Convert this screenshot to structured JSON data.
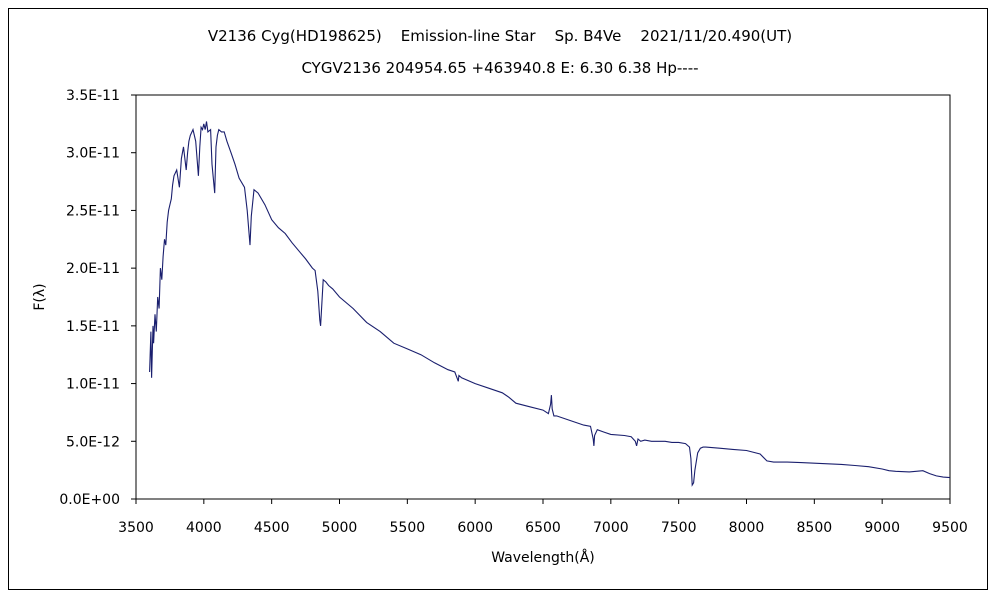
{
  "chart_data": {
    "type": "line",
    "title": "V2136 Cyg(HD198625)    Emission-line Star    Sp. B4Ve    2021/11/20.490(UT)",
    "subtitle": "CYGV2136 204954.65 +463940.8 E: 6.30 6.38 Hp----",
    "xlabel": "Wavelength(Å)",
    "ylabel": "F(λ)",
    "xlim": [
      3500,
      9500
    ],
    "ylim": [
      0,
      3.5e-11
    ],
    "x_ticks": [
      3500,
      4000,
      4500,
      5000,
      5500,
      6000,
      6500,
      7000,
      7500,
      8000,
      8500,
      9000,
      9500
    ],
    "y_ticks": [
      {
        "value": 0,
        "label": "0.0E+00"
      },
      {
        "value": 5e-12,
        "label": "5.0E-12"
      },
      {
        "value": 1e-11,
        "label": "1.0E-11"
      },
      {
        "value": 1.5e-11,
        "label": "1.5E-11"
      },
      {
        "value": 2e-11,
        "label": "2.0E-11"
      },
      {
        "value": 2.5e-11,
        "label": "2.5E-11"
      },
      {
        "value": 3e-11,
        "label": "3.0E-11"
      },
      {
        "value": 3.5e-11,
        "label": "3.5E-11"
      }
    ],
    "grid": false,
    "legend": "none",
    "line_color": "#1a1f6e",
    "series": [
      {
        "x": [
          3600,
          3610,
          3615,
          3625,
          3630,
          3640,
          3650,
          3660,
          3670,
          3680,
          3690,
          3700,
          3710,
          3720,
          3730,
          3740,
          3750,
          3760,
          3770,
          3780,
          3800,
          3820,
          3835,
          3850,
          3870,
          3880,
          3890,
          3900,
          3920,
          3940,
          3960,
          3970,
          3980,
          3990,
          4000,
          4010,
          4020,
          4030,
          4050,
          4060,
          4080,
          4090,
          4100,
          4110,
          4130,
          4150,
          4170,
          4200,
          4230,
          4260,
          4300,
          4320,
          4340,
          4350,
          4370,
          4400,
          4450,
          4500,
          4550,
          4600,
          4650,
          4700,
          4750,
          4800,
          4820,
          4840,
          4855,
          4861,
          4870,
          4880,
          4900,
          4920,
          4950,
          5000,
          5100,
          5200,
          5300,
          5400,
          5500,
          5600,
          5700,
          5800,
          5850,
          5876,
          5880,
          5900,
          6000,
          6100,
          6200,
          6250,
          6300,
          6400,
          6500,
          6540,
          6556,
          6562,
          6568,
          6580,
          6600,
          6700,
          6800,
          6850,
          6870,
          6875,
          6880,
          6900,
          6950,
          7000,
          7100,
          7150,
          7180,
          7190,
          7200,
          7220,
          7250,
          7300,
          7350,
          7400,
          7450,
          7500,
          7550,
          7580,
          7590,
          7600,
          7610,
          7620,
          7640,
          7660,
          7680,
          7700,
          7800,
          7900,
          8000,
          8100,
          8150,
          8200,
          8300,
          8400,
          8500,
          8600,
          8700,
          8800,
          8900,
          9000,
          9050,
          9100,
          9200,
          9300,
          9350,
          9400,
          9450,
          9500
        ],
        "values": [
          1.1e-11,
          1.45e-11,
          1.05e-11,
          1.5e-11,
          1.35e-11,
          1.6e-11,
          1.45e-11,
          1.75e-11,
          1.65e-11,
          2e-11,
          1.9e-11,
          2.1e-11,
          2.25e-11,
          2.2e-11,
          2.4e-11,
          2.5e-11,
          2.55e-11,
          2.6e-11,
          2.72e-11,
          2.8e-11,
          2.85e-11,
          2.7e-11,
          2.95e-11,
          3.05e-11,
          2.85e-11,
          3e-11,
          3.1e-11,
          3.15e-11,
          3.2e-11,
          3.1e-11,
          2.8e-11,
          3.05e-11,
          3.22e-11,
          3.2e-11,
          3.25e-11,
          3.2e-11,
          3.27e-11,
          3.18e-11,
          3.2e-11,
          2.9e-11,
          2.65e-11,
          3.05e-11,
          3.15e-11,
          3.2e-11,
          3.18e-11,
          3.18e-11,
          3.1e-11,
          3e-11,
          2.9e-11,
          2.78e-11,
          2.7e-11,
          2.5e-11,
          2.2e-11,
          2.45e-11,
          2.68e-11,
          2.65e-11,
          2.55e-11,
          2.42e-11,
          2.35e-11,
          2.3e-11,
          2.22e-11,
          2.15e-11,
          2.08e-11,
          2e-11,
          1.98e-11,
          1.8e-11,
          1.55e-11,
          1.5e-11,
          1.7e-11,
          1.9e-11,
          1.88e-11,
          1.85e-11,
          1.82e-11,
          1.75e-11,
          1.65e-11,
          1.53e-11,
          1.45e-11,
          1.35e-11,
          1.3e-11,
          1.25e-11,
          1.18e-11,
          1.12e-11,
          1.1e-11,
          1.02e-11,
          1.07e-11,
          1.05e-11,
          1e-11,
          9.6e-12,
          9.2e-12,
          8.8e-12,
          8.3e-12,
          8e-12,
          7.7e-12,
          7.4e-12,
          8.2e-12,
          9e-12,
          7.8e-12,
          7.2e-12,
          7.2e-12,
          6.8e-12,
          6.4e-12,
          6.3e-12,
          5.2e-12,
          4.6e-12,
          5.5e-12,
          6e-12,
          5.8e-12,
          5.6e-12,
          5.5e-12,
          5.4e-12,
          5e-12,
          4.6e-12,
          5.2e-12,
          5e-12,
          5.1e-12,
          5e-12,
          5e-12,
          5e-12,
          4.9e-12,
          4.9e-12,
          4.8e-12,
          4.5e-12,
          3.5e-12,
          1.2e-12,
          1.4e-12,
          2.5e-12,
          4e-12,
          4.4e-12,
          4.5e-12,
          4.5e-12,
          4.4e-12,
          4.3e-12,
          4.2e-12,
          3.9e-12,
          3.3e-12,
          3.2e-12,
          3.2e-12,
          3.15e-12,
          3.1e-12,
          3.05e-12,
          3e-12,
          2.9e-12,
          2.8e-12,
          2.6e-12,
          2.45e-12,
          2.4e-12,
          2.35e-12,
          2.45e-12,
          2.2e-12,
          2e-12,
          1.9e-12,
          1.85e-12
        ]
      }
    ]
  }
}
